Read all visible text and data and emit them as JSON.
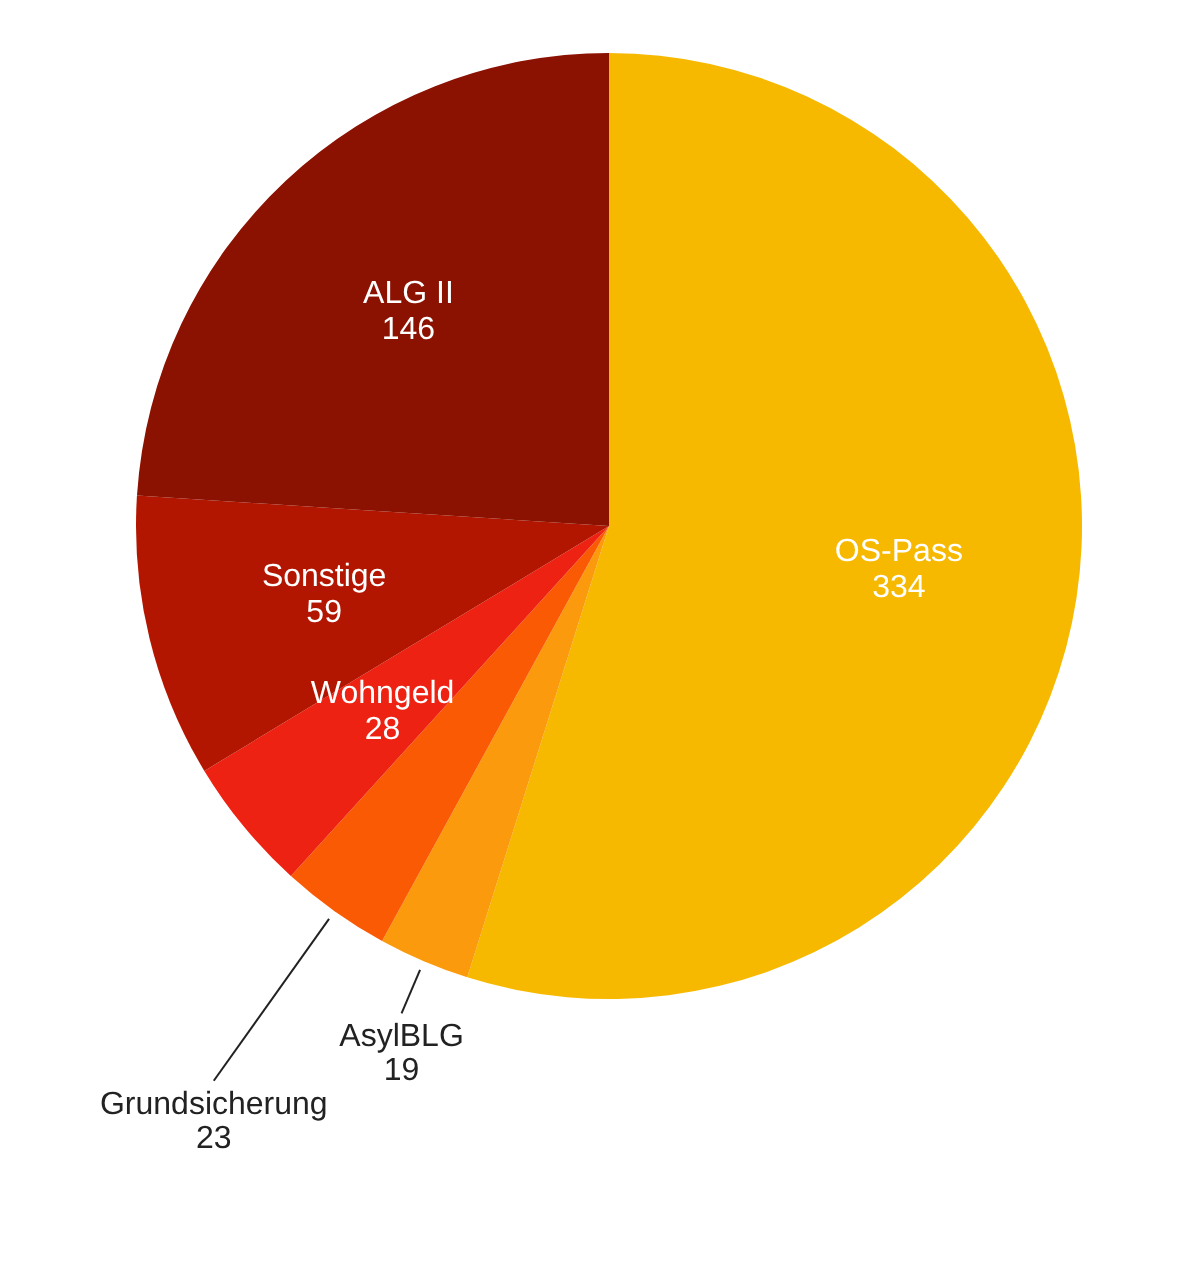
{
  "chart_data": {
    "type": "pie",
    "categories": [
      "OS-Pass",
      "AsylBLG",
      "Grundsicherung",
      "Wohngeld",
      "Sonstige",
      "ALG II"
    ],
    "values": [
      334,
      19,
      23,
      28,
      59,
      146
    ],
    "colors": [
      "#f6b900",
      "#fa9a0c",
      "#fb5a05",
      "#ee2213",
      "#b31600",
      "#8b1100"
    ],
    "data_labels": true,
    "legend": false
  }
}
